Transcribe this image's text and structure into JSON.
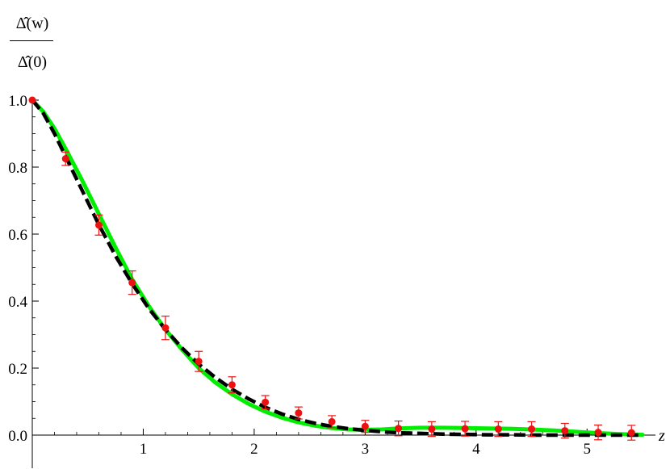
{
  "chart_data": {
    "type": "line",
    "ylabel_numerator": "Δ̂(w)",
    "ylabel_denominator": "Δ̂(0)",
    "xlabel": "z",
    "xlim": [
      0,
      5.5
    ],
    "ylim": [
      0,
      1.0
    ],
    "x_ticks": [
      1,
      2,
      3,
      4,
      5
    ],
    "x_tick_labels": [
      "1",
      "2",
      "3",
      "4",
      "5"
    ],
    "y_ticks": [
      0.0,
      0.2,
      0.4,
      0.6,
      0.8,
      1.0
    ],
    "y_tick_labels": [
      "0.0",
      "0.2",
      "0.4",
      "0.6",
      "0.8",
      "1.0"
    ],
    "grid": false,
    "colors": {
      "green_curve": "#00ee00",
      "dashed_curve": "#000000",
      "points": "#ee1111"
    },
    "series": [
      {
        "style": "solid-green",
        "x": [
          0,
          0.1,
          0.2,
          0.3,
          0.45,
          0.6,
          0.75,
          0.9,
          1.05,
          1.2,
          1.35,
          1.5,
          1.65,
          1.8,
          1.95,
          2.1,
          2.25,
          2.4,
          2.55,
          2.7,
          2.85,
          3.0,
          3.15,
          3.3,
          3.5,
          3.7,
          3.9,
          4.1,
          4.3,
          4.5,
          4.7,
          4.9,
          5.1,
          5.3,
          5.5
        ],
        "y": [
          1.0,
          0.965,
          0.915,
          0.855,
          0.76,
          0.66,
          0.56,
          0.465,
          0.385,
          0.315,
          0.255,
          0.2,
          0.157,
          0.122,
          0.093,
          0.07,
          0.052,
          0.038,
          0.028,
          0.021,
          0.017,
          0.016,
          0.017,
          0.02,
          0.022,
          0.022,
          0.021,
          0.02,
          0.019,
          0.017,
          0.014,
          0.01,
          0.006,
          0.003,
          0.001
        ]
      },
      {
        "style": "dashed-black",
        "x": [
          0,
          0.1,
          0.2,
          0.3,
          0.45,
          0.6,
          0.75,
          0.9,
          1.05,
          1.2,
          1.35,
          1.5,
          1.65,
          1.8,
          1.95,
          2.1,
          2.25,
          2.4,
          2.55,
          2.7,
          2.85,
          3.0,
          3.15,
          3.3,
          3.5,
          3.7,
          3.9,
          4.1,
          4.3,
          4.5,
          4.7,
          4.9,
          5.1,
          5.3,
          5.5
        ],
        "y": [
          1.0,
          0.96,
          0.9,
          0.832,
          0.73,
          0.628,
          0.535,
          0.452,
          0.378,
          0.315,
          0.26,
          0.212,
          0.172,
          0.137,
          0.108,
          0.083,
          0.063,
          0.047,
          0.035,
          0.026,
          0.019,
          0.014,
          0.01,
          0.007,
          0.005,
          0.003,
          0.002,
          0.001,
          0.001,
          0.0,
          0.0,
          0.0,
          0.0,
          0.0,
          0.0
        ]
      },
      {
        "style": "red-points-with-errorbars",
        "x": [
          0,
          0.3,
          0.6,
          0.9,
          1.2,
          1.5,
          1.8,
          2.1,
          2.4,
          2.7,
          3.0,
          3.3,
          3.6,
          3.9,
          4.2,
          4.5,
          4.8,
          5.1,
          5.4
        ],
        "y": [
          1.0,
          0.825,
          0.627,
          0.455,
          0.32,
          0.22,
          0.15,
          0.098,
          0.066,
          0.04,
          0.026,
          0.02,
          0.018,
          0.019,
          0.018,
          0.018,
          0.013,
          0.008,
          0.007
        ],
        "err": [
          0,
          0.02,
          0.03,
          0.035,
          0.035,
          0.03,
          0.024,
          0.02,
          0.018,
          0.018,
          0.018,
          0.022,
          0.022,
          0.022,
          0.022,
          0.022,
          0.022,
          0.022,
          0.022
        ]
      }
    ]
  }
}
